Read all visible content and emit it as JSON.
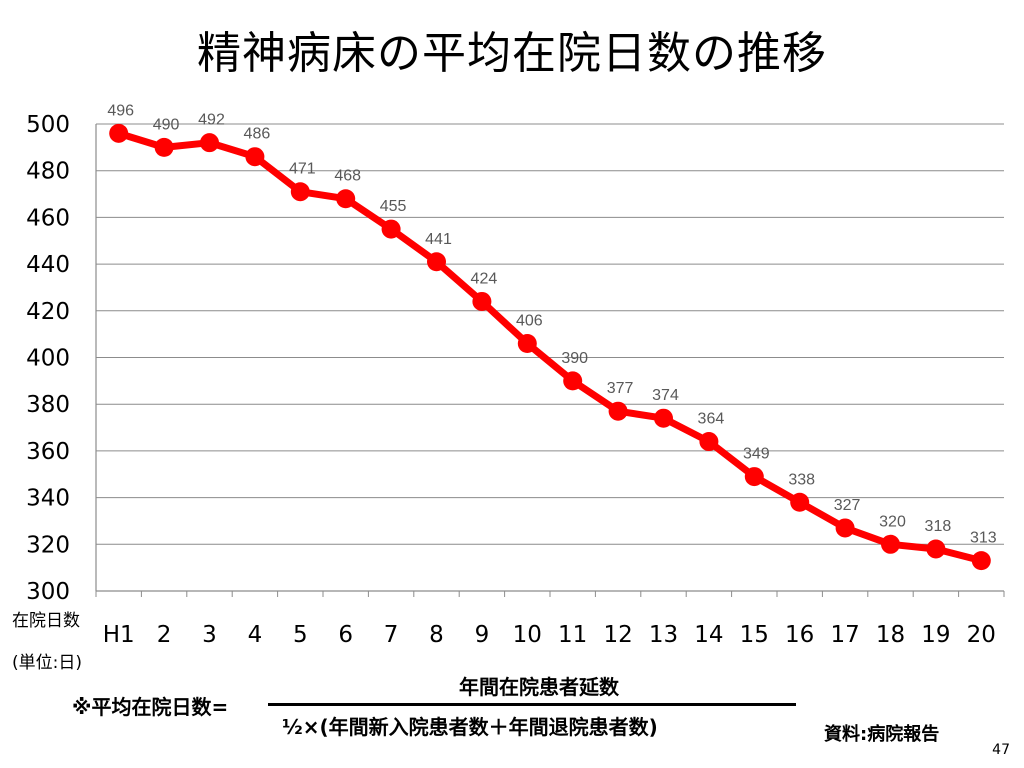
{
  "slide": {
    "title": "精神病床の平均在院日数の推移",
    "page_number": "47"
  },
  "chart_data": {
    "type": "line",
    "title": "精神病床の平均在院日数の推移",
    "categories": [
      "H1",
      "2",
      "3",
      "4",
      "5",
      "6",
      "7",
      "8",
      "9",
      "10",
      "11",
      "12",
      "13",
      "14",
      "15",
      "16",
      "17",
      "18",
      "19",
      "20"
    ],
    "series": [
      {
        "values": [
          496,
          490,
          492,
          486,
          471,
          468,
          455,
          441,
          424,
          406,
          390,
          377,
          374,
          364,
          349,
          338,
          327,
          320,
          318,
          313
        ]
      }
    ],
    "ylabel_lines": [
      "在院日数",
      "(単位:日)"
    ],
    "ylim": [
      300,
      500
    ],
    "yticks": [
      300,
      320,
      340,
      360,
      380,
      400,
      420,
      440,
      460,
      480,
      500
    ],
    "grid": true,
    "data_labels": true,
    "line_color": "#ff0000",
    "grid_color": "#8c8c8c",
    "label_color": "#595959"
  },
  "formula": {
    "label": "※平均在院日数=",
    "numerator": "年間在院患者延数",
    "denominator": "½×(年間新入院患者数＋年間退院患者数)"
  },
  "source": "資料:病院報告"
}
